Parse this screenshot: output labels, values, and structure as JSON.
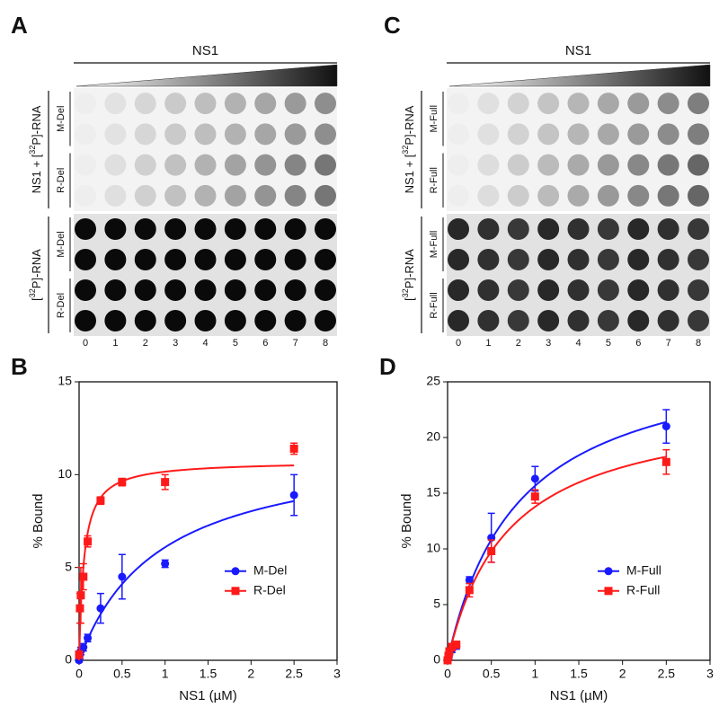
{
  "blots": [
    {
      "letter": "A",
      "header": "NS1",
      "lanes": [
        0,
        1,
        2,
        3,
        4,
        5,
        6,
        7,
        8
      ],
      "groups": [
        {
          "label": {
            "pre": "NS1 + [",
            "sup": "32",
            "post": "P]-RNA"
          },
          "rows": [
            "M-Del",
            "R-Del"
          ]
        },
        {
          "label": {
            "pre": "[",
            "sup": "32",
            "post": "P]-RNA"
          },
          "rows": [
            "M-Del",
            "R-Del"
          ]
        }
      ]
    },
    {
      "letter": "C",
      "header": "NS1",
      "lanes": [
        0,
        1,
        2,
        3,
        4,
        5,
        6,
        7,
        8
      ],
      "groups": [
        {
          "label": {
            "pre": "NS1 + [",
            "sup": "32",
            "post": "P]-RNA"
          },
          "rows": [
            "M-Full",
            "R-Full"
          ]
        },
        {
          "label": {
            "pre": "[",
            "sup": "32",
            "post": "P]-RNA"
          },
          "rows": [
            "M-Full",
            "R-Full"
          ]
        }
      ]
    }
  ],
  "chart_data": [
    {
      "type": "scatter",
      "letter": "B",
      "xlabel": "NS1 (µM)",
      "ylabel": "% Bound",
      "x": [
        0,
        0.01,
        0.02,
        0.05,
        0.1,
        0.25,
        0.5,
        1,
        2.5
      ],
      "series": [
        {
          "name": "M-Del",
          "color": "#1a1aff",
          "marker": "circle",
          "values": [
            0,
            0.3,
            0.5,
            0.7,
            1.2,
            2.8,
            4.5,
            5.2,
            8.9
          ],
          "errors": [
            0.1,
            0.2,
            0.2,
            0.2,
            0.2,
            0.8,
            1.2,
            0.2,
            1.1
          ]
        },
        {
          "name": "R-Del",
          "color": "#ff1a1a",
          "marker": "square",
          "values": [
            0.3,
            2.8,
            3.5,
            4.5,
            6.4,
            8.6,
            9.6,
            9.6,
            11.4
          ],
          "errors": [
            0.2,
            0.8,
            1.5,
            0.7,
            0.3,
            0.2,
            0.2,
            0.4,
            0.3
          ]
        }
      ],
      "xlim": [
        0,
        3
      ],
      "ylim": [
        0,
        15
      ],
      "xticks": [
        0,
        0.5,
        1,
        1.5,
        2,
        2.5,
        3
      ],
      "yticks": [
        0,
        5,
        10,
        15
      ],
      "legend": "right"
    },
    {
      "type": "scatter",
      "letter": "D",
      "xlabel": "NS1 (µM)",
      "ylabel": "% Bound",
      "x": [
        0,
        0.01,
        0.02,
        0.05,
        0.1,
        0.25,
        0.5,
        1,
        2.5
      ],
      "series": [
        {
          "name": "M-Full",
          "color": "#1a1aff",
          "marker": "circle",
          "values": [
            0,
            0.3,
            0.6,
            1.0,
            1.3,
            7.2,
            11.0,
            16.3,
            21.0
          ],
          "errors": [
            0.2,
            0.3,
            0.3,
            0.3,
            0.3,
            0.3,
            2.2,
            1.1,
            1.5
          ]
        },
        {
          "name": "R-Full",
          "color": "#ff1a1a",
          "marker": "square",
          "values": [
            0,
            0.4,
            0.8,
            1.2,
            1.4,
            6.3,
            9.8,
            14.7,
            17.8
          ],
          "errors": [
            0.2,
            0.3,
            0.3,
            0.3,
            0.3,
            0.6,
            1.0,
            0.6,
            1.1
          ]
        }
      ],
      "xlim": [
        0,
        3
      ],
      "ylim": [
        0,
        25
      ],
      "xticks": [
        0,
        0.5,
        1,
        1.5,
        2,
        2.5,
        3
      ],
      "yticks": [
        0,
        5,
        10,
        15,
        20,
        25
      ],
      "legend": "right"
    }
  ]
}
